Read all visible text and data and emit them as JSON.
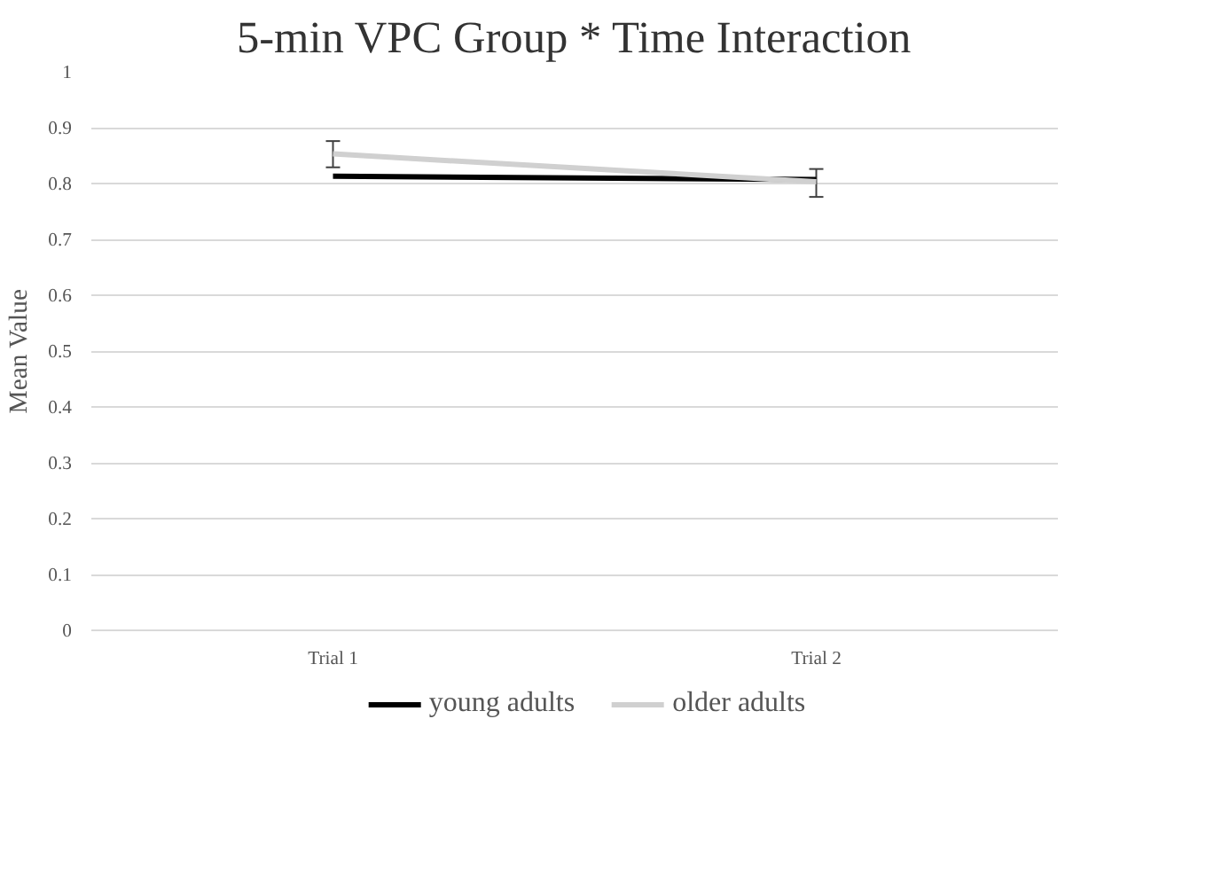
{
  "chart_data": {
    "type": "line",
    "title": "5-min VPC Group * Time Interaction",
    "ylabel": "Mean Value",
    "categories": [
      "Trial 1",
      "Trial 2"
    ],
    "series": [
      {
        "name": "young adults",
        "color": "#000000",
        "values": [
          0.813,
          0.807
        ]
      },
      {
        "name": "older adults",
        "color": "#d0d0d0",
        "values": [
          0.853,
          0.803
        ],
        "errors": [
          [
            0.829,
            0.876
          ],
          [
            0.776,
            0.826
          ]
        ]
      }
    ],
    "ylim": [
      0,
      1
    ],
    "yticks": [
      0,
      0.1,
      0.2,
      0.3,
      0.4,
      0.5,
      0.6,
      0.7,
      0.8,
      0.9,
      1
    ],
    "grid": "y",
    "legend": "bottom",
    "marker": "none",
    "line_style": "solid"
  }
}
